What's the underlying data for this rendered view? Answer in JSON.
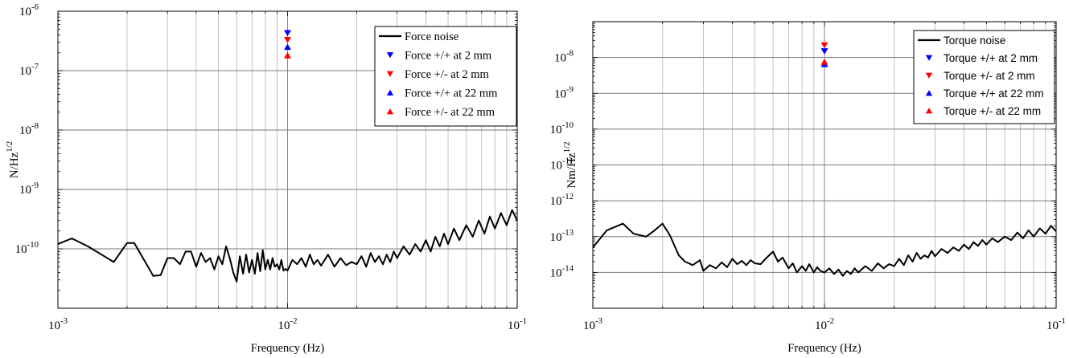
{
  "chart_data": [
    {
      "type": "line",
      "xlabel": "Frequency (Hz)",
      "ylabel": "N/Hz^1/2",
      "ylabel_base": "N/Hz",
      "ylabel_exp": "1/2",
      "xscale": "log",
      "yscale": "log",
      "xlim": [
        0.001,
        0.1
      ],
      "ylim": [
        1e-11,
        1e-06
      ],
      "xticks": [
        {
          "value": 0.001,
          "base": "10",
          "exp": "-3"
        },
        {
          "value": 0.01,
          "base": "10",
          "exp": "-2"
        },
        {
          "value": 0.1,
          "base": "10",
          "exp": "-1"
        }
      ],
      "yticks": [
        {
          "value": 1e-10,
          "base": "10",
          "exp": "-10"
        },
        {
          "value": 1e-09,
          "base": "10",
          "exp": "-9"
        },
        {
          "value": 1e-08,
          "base": "10",
          "exp": "-8"
        },
        {
          "value": 1e-07,
          "base": "10",
          "exp": "-7"
        },
        {
          "value": 1e-06,
          "base": "10",
          "exp": "-6"
        }
      ],
      "grid": true,
      "legend_position": "top-right",
      "series": [
        {
          "name": "Force noise",
          "color": "#000000",
          "style": "line",
          "x": [
            0.001,
            0.00115,
            0.00135,
            0.00155,
            0.00175,
            0.002,
            0.00215,
            0.0024,
            0.0026,
            0.0028,
            0.003,
            0.0032,
            0.0034,
            0.0036,
            0.0038,
            0.004,
            0.0042,
            0.0044,
            0.0046,
            0.0048,
            0.005,
            0.0052,
            0.0054,
            0.0056,
            0.0058,
            0.006,
            0.0062,
            0.0064,
            0.0066,
            0.0068,
            0.007,
            0.0072,
            0.0074,
            0.0076,
            0.0078,
            0.008,
            0.0082,
            0.0084,
            0.0086,
            0.0088,
            0.009,
            0.0092,
            0.0094,
            0.0096,
            0.0098,
            0.01,
            0.0105,
            0.011,
            0.0115,
            0.012,
            0.0125,
            0.013,
            0.0135,
            0.014,
            0.015,
            0.016,
            0.017,
            0.018,
            0.019,
            0.02,
            0.021,
            0.022,
            0.023,
            0.024,
            0.025,
            0.026,
            0.027,
            0.028,
            0.029,
            0.03,
            0.032,
            0.034,
            0.036,
            0.038,
            0.04,
            0.042,
            0.044,
            0.046,
            0.048,
            0.05,
            0.053,
            0.056,
            0.06,
            0.064,
            0.068,
            0.072,
            0.076,
            0.08,
            0.085,
            0.09,
            0.095,
            0.1
          ],
          "y": [
            1.2e-10,
            1.5e-10,
            1.1e-10,
            8e-11,
            6e-11,
            1.25e-10,
            1.25e-10,
            6e-11,
            3.5e-11,
            3.6e-11,
            7e-11,
            7e-11,
            5.5e-11,
            9e-11,
            9e-11,
            5e-11,
            8.5e-11,
            6e-11,
            7e-11,
            4.5e-11,
            7.5e-11,
            5.5e-11,
            1.1e-10,
            7e-11,
            4e-11,
            2.8e-11,
            7.5e-11,
            3.8e-11,
            8e-11,
            4e-11,
            6.5e-11,
            3.8e-11,
            8.5e-11,
            4.2e-11,
            9.5e-11,
            4.5e-11,
            6.5e-11,
            4.5e-11,
            7e-11,
            5e-11,
            5.5e-11,
            4.5e-11,
            6.5e-11,
            4.3e-11,
            4.6e-11,
            4.3e-11,
            6.5e-11,
            5.5e-11,
            7e-11,
            5e-11,
            8e-11,
            5.5e-11,
            6.5e-11,
            5.2e-11,
            8e-11,
            5e-11,
            7e-11,
            5.3e-11,
            6e-11,
            5.5e-11,
            7.5e-11,
            5e-11,
            8.5e-11,
            6e-11,
            7.5e-11,
            5.5e-11,
            8e-11,
            6e-11,
            9e-11,
            7e-11,
            1.1e-10,
            8e-11,
            1.2e-10,
            9e-11,
            1.4e-10,
            9e-11,
            1.6e-10,
            1.1e-10,
            1.8e-10,
            1.2e-10,
            2.2e-10,
            1.4e-10,
            2.5e-10,
            1.6e-10,
            3e-10,
            1.8e-10,
            3.5e-10,
            2.2e-10,
            4e-10,
            2.5e-10,
            4.5e-10,
            3e-10
          ]
        },
        {
          "name": "Force +/+ at 2 mm",
          "color": "#0000ff",
          "style": "marker-down",
          "x": [
            0.01
          ],
          "y": [
            4.3e-07
          ]
        },
        {
          "name": "Force +/- at 2 mm",
          "color": "#ff0000",
          "style": "marker-down",
          "x": [
            0.01
          ],
          "y": [
            3.3e-07
          ]
        },
        {
          "name": "Force +/+ at 22 mm",
          "color": "#0000ff",
          "style": "marker-up",
          "x": [
            0.01
          ],
          "y": [
            2.5e-07
          ]
        },
        {
          "name": "Force +/- at 22 mm",
          "color": "#ff0000",
          "style": "marker-up",
          "x": [
            0.01
          ],
          "y": [
            1.8e-07
          ]
        }
      ]
    },
    {
      "type": "line",
      "xlabel": "Frequency (Hz)",
      "ylabel": "Nm/Hz^1/2",
      "ylabel_base": "Nm/Hz",
      "ylabel_exp": "1/2",
      "xscale": "log",
      "yscale": "log",
      "xlim": [
        0.001,
        0.1
      ],
      "ylim": [
        1e-15,
        1e-07
      ],
      "xticks": [
        {
          "value": 0.001,
          "base": "10",
          "exp": "-3"
        },
        {
          "value": 0.01,
          "base": "10",
          "exp": "-2"
        },
        {
          "value": 0.1,
          "base": "10",
          "exp": "-1"
        }
      ],
      "yticks": [
        {
          "value": 1e-14,
          "base": "10",
          "exp": "-14"
        },
        {
          "value": 1e-13,
          "base": "10",
          "exp": "-13"
        },
        {
          "value": 1e-12,
          "base": "10",
          "exp": "-12"
        },
        {
          "value": 1e-11,
          "base": "10",
          "exp": "-11"
        },
        {
          "value": 1e-10,
          "base": "10",
          "exp": "-10"
        },
        {
          "value": 1e-09,
          "base": "10",
          "exp": "-9"
        },
        {
          "value": 1e-08,
          "base": "10",
          "exp": "-8"
        }
      ],
      "grid": true,
      "legend_position": "top-right",
      "series": [
        {
          "name": "Torque noise",
          "color": "#000000",
          "style": "line",
          "x": [
            0.001,
            0.00115,
            0.00135,
            0.0015,
            0.0017,
            0.00185,
            0.002,
            0.00215,
            0.00235,
            0.0025,
            0.0027,
            0.0029,
            0.003,
            0.0032,
            0.0034,
            0.0036,
            0.0038,
            0.004,
            0.0042,
            0.0044,
            0.0046,
            0.0048,
            0.005,
            0.0053,
            0.0056,
            0.006,
            0.0063,
            0.0066,
            0.007,
            0.0073,
            0.0076,
            0.008,
            0.0083,
            0.0086,
            0.009,
            0.0093,
            0.0096,
            0.01,
            0.0105,
            0.011,
            0.0115,
            0.012,
            0.0125,
            0.013,
            0.0135,
            0.014,
            0.015,
            0.016,
            0.017,
            0.018,
            0.019,
            0.02,
            0.021,
            0.022,
            0.023,
            0.024,
            0.025,
            0.026,
            0.027,
            0.028,
            0.029,
            0.03,
            0.032,
            0.034,
            0.036,
            0.038,
            0.04,
            0.042,
            0.044,
            0.046,
            0.048,
            0.05,
            0.053,
            0.056,
            0.06,
            0.064,
            0.068,
            0.072,
            0.076,
            0.08,
            0.085,
            0.09,
            0.095,
            0.1
          ],
          "y": [
            5e-14,
            1.5e-13,
            2.3e-13,
            1.2e-13,
            1e-13,
            1.5e-13,
            2.3e-13,
            1.1e-13,
            3e-14,
            2e-14,
            1.6e-14,
            2.2e-14,
            1.1e-14,
            1.6e-14,
            1.3e-14,
            1.9e-14,
            1.4e-14,
            2.4e-14,
            1.7e-14,
            2.1e-14,
            1.6e-14,
            2.2e-14,
            1.8e-14,
            1.7e-14,
            2.5e-14,
            3.8e-14,
            2e-14,
            2.6e-14,
            1.3e-14,
            1.8e-14,
            1e-14,
            1.5e-14,
            1.1e-14,
            1.7e-14,
            1e-14,
            1.4e-14,
            1.1e-14,
            1e-14,
            1.3e-14,
            9e-15,
            1.2e-14,
            8e-15,
            1.1e-14,
            9e-15,
            1.3e-14,
            1e-14,
            1.5e-14,
            1.1e-14,
            1.8e-14,
            1.3e-14,
            1.7e-14,
            1.5e-14,
            2.4e-14,
            1.6e-14,
            3e-14,
            2e-14,
            3.5e-14,
            2.4e-14,
            3e-14,
            2.6e-14,
            4e-14,
            2.8e-14,
            4.5e-14,
            3.5e-14,
            5e-14,
            4e-14,
            6e-14,
            4.5e-14,
            7e-14,
            5.5e-14,
            8e-14,
            6e-14,
            9e-14,
            7e-14,
            1e-13,
            8e-14,
            1.3e-13,
            9e-14,
            1.5e-13,
            1e-13,
            1.7e-13,
            1.2e-13,
            2e-13,
            1.4e-13
          ]
        },
        {
          "name": "Torque +/+ at 2 mm",
          "color": "#0000ff",
          "style": "marker-down",
          "x": [
            0.01
          ],
          "y": [
            1.5e-08
          ]
        },
        {
          "name": "Torque +/- at 2 mm",
          "color": "#ff0000",
          "style": "marker-down",
          "x": [
            0.01
          ],
          "y": [
            2.2e-08
          ]
        },
        {
          "name": "Torque +/+ at 22 mm",
          "color": "#0000ff",
          "style": "marker-up",
          "x": [
            0.01
          ],
          "y": [
            6.5e-09
          ]
        },
        {
          "name": "Torque +/- at 22 mm",
          "color": "#ff0000",
          "style": "marker-up",
          "x": [
            0.01
          ],
          "y": [
            7.5e-09
          ]
        }
      ]
    }
  ]
}
